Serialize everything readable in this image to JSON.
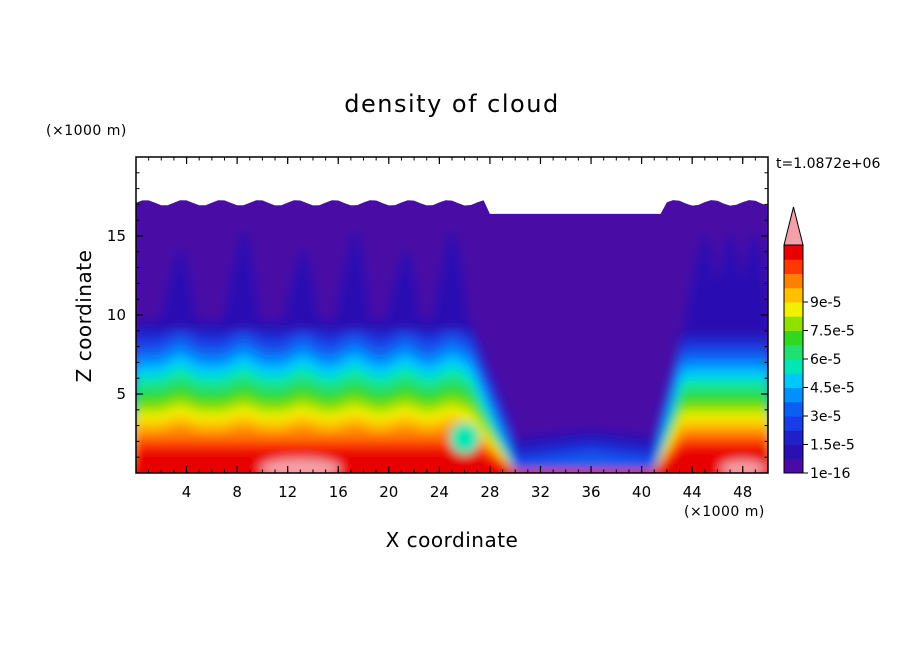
{
  "chart_data": {
    "type": "heatmap",
    "title": "density of cloud",
    "xlabel": "X coordinate",
    "ylabel": "Z coordinate",
    "x_unit": "(×1000 m)",
    "y_unit": "(×1000 m)",
    "time_label": "t=1.0872e+06",
    "xlim": [
      0,
      50
    ],
    "ylim": [
      0,
      20
    ],
    "x_ticks": [
      "4",
      "8",
      "12",
      "16",
      "20",
      "24",
      "28",
      "32",
      "36",
      "40",
      "44",
      "48"
    ],
    "y_ticks": [
      "5",
      "10",
      "15"
    ],
    "colorbar": {
      "labels": [
        "1e-16",
        "1.5e-5",
        "3e-5",
        "4.5e-5",
        "6e-5",
        "7.5e-5",
        "9e-5"
      ],
      "levels": [
        1e-16,
        7.5e-06,
        1.5e-05,
        2.25e-05,
        3e-05,
        3.75e-05,
        4.5e-05,
        5.25e-05,
        6e-05,
        6.75e-05,
        7.5e-05,
        8.25e-05,
        9e-05,
        9.75e-05,
        0.000105
      ],
      "colors": [
        "#4a0aa6",
        "#2a10b2",
        "#1f20c8",
        "#1a3ce6",
        "#0a5ef0",
        "#0090ff",
        "#00c8ff",
        "#00e6b4",
        "#20e070",
        "#30d820",
        "#90e000",
        "#f0f000",
        "#ffc000",
        "#ff8000",
        "#ff3800",
        "#e80000"
      ],
      "overflow_color": "#f5a0a8",
      "extend": "max"
    }
  }
}
